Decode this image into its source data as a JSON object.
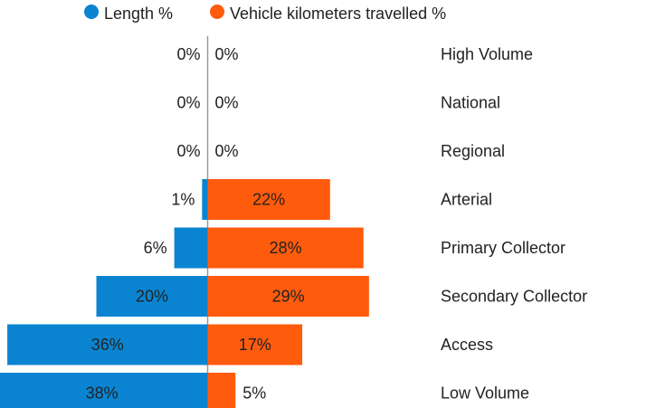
{
  "chart_data": {
    "type": "butterfly",
    "categories": [
      "High Volume",
      "National",
      "Regional",
      "Arterial",
      "Primary Collector",
      "Secondary Collector",
      "Access",
      "Low Volume"
    ],
    "series": [
      {
        "name": "Length %",
        "color": "#0a84d0",
        "values": [
          0,
          0,
          0,
          1,
          6,
          20,
          36,
          38
        ],
        "value_labels": [
          "0%",
          "0%",
          "0%",
          "1%",
          "6%",
          "20%",
          "36%",
          "38%"
        ]
      },
      {
        "name": "Vehicle kilometers travelled %",
        "color": "#ff5b0d",
        "values": [
          0,
          0,
          0,
          22,
          28,
          29,
          17,
          5
        ],
        "value_labels": [
          "0%",
          "0%",
          "0%",
          "22%",
          "28%",
          "29%",
          "17%",
          "5%"
        ]
      }
    ]
  }
}
